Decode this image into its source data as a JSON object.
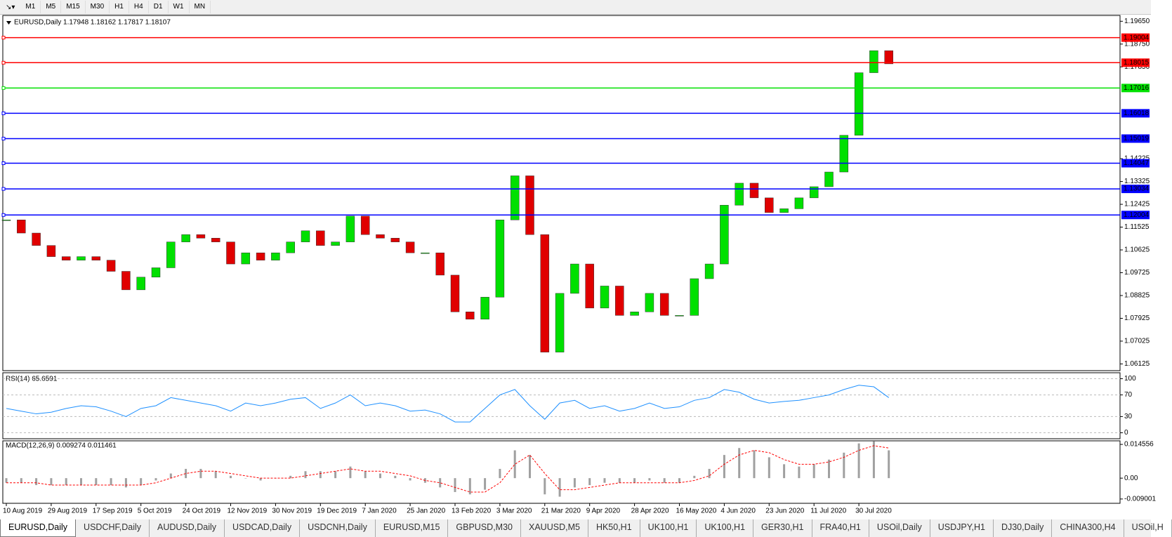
{
  "toolbar": {
    "timeframes": [
      "M1",
      "M5",
      "M15",
      "M30",
      "H1",
      "H4",
      "D1",
      "W1",
      "MN"
    ]
  },
  "tabs": [
    "EURUSD,Daily",
    "USDCHF,Daily",
    "AUDUSD,Daily",
    "USDCAD,Daily",
    "USDCNH,Daily",
    "EURUSD,M15",
    "GBPUSD,M30",
    "XAUUSD,M5",
    "HK50,H1",
    "UK100,H1",
    "UK100,H1",
    "GER30,H1",
    "FRA40,H1",
    "USOil,Daily",
    "USDJPY,H1",
    "DJ30,Daily",
    "CHINA300,H4",
    "USOil,H"
  ],
  "chart_data": [
    {
      "type": "candlestick",
      "title": "EURUSD,Daily  1.17948 1.18162 1.17817 1.18107",
      "categories": [
        "10 Aug 2019",
        null,
        null,
        "29 Aug 2019",
        null,
        null,
        "17 Sep 2019",
        null,
        null,
        "5 Oct 2019",
        null,
        null,
        "24 Oct 2019",
        null,
        null,
        "12 Nov 2019",
        null,
        null,
        "30 Nov 2019",
        null,
        null,
        "19 Dec 2019",
        null,
        null,
        "7 Jan 2020",
        null,
        null,
        "25 Jan 2020",
        null,
        null,
        "13 Feb 2020",
        null,
        null,
        "3 Mar 2020",
        null,
        null,
        "21 Mar 2020",
        null,
        null,
        "9 Apr 2020",
        null,
        null,
        "28 Apr 2020",
        null,
        null,
        "16 May 2020",
        null,
        null,
        "4 Jun 2020",
        null,
        null,
        "23 Jun 2020",
        null,
        null,
        "11 Jul 2020",
        null,
        null,
        "30 Jul 2020",
        null,
        null
      ],
      "values": [
        1.1181,
        1.1129,
        1.108,
        1.1036,
        1.1022,
        1.1036,
        1.1022,
        1.0978,
        1.0905,
        1.0955,
        1.0992,
        1.1094,
        1.1123,
        1.1109,
        1.1094,
        1.1007,
        1.1051,
        1.1022,
        1.1051,
        1.1094,
        1.1138,
        1.108,
        1.1094,
        1.1196,
        1.1123,
        1.1109,
        1.1094,
        1.1051,
        1.1051,
        1.0963,
        1.0818,
        1.0789,
        1.0876,
        1.1181,
        1.1355,
        1.1123,
        1.0659,
        1.0891,
        1.1007,
        1.0833,
        1.092,
        1.0804,
        1.0818,
        1.0891,
        1.0804,
        1.0804,
        1.0949,
        1.1007,
        1.1239,
        1.1326,
        1.1268,
        1.121,
        1.1225,
        1.1268,
        1.1312,
        1.137,
        1.1515,
        1.1762,
        1.1849,
        1.1797
      ],
      "up_color": "#00e000",
      "down_color": "#e00000",
      "ylim": [
        1.0586,
        1.1988
      ],
      "yticks": [
        {
          "value": 1.1965,
          "label": "1.19650"
        },
        {
          "value": 1.1875,
          "label": "1.18750"
        },
        {
          "value": 1.1785,
          "label": "1.17850"
        },
        {
          "value": 1.14225,
          "label": "1.14225"
        },
        {
          "value": 1.13325,
          "label": "1.13325"
        },
        {
          "value": 1.12425,
          "label": "1.12425"
        },
        {
          "value": 1.11525,
          "label": "1.11525"
        },
        {
          "value": 1.10625,
          "label": "1.10625"
        },
        {
          "value": 1.09725,
          "label": "1.09725"
        },
        {
          "value": 1.08825,
          "label": "1.08825"
        },
        {
          "value": 1.07925,
          "label": "1.07925"
        },
        {
          "value": 1.07025,
          "label": "1.07025"
        },
        {
          "value": 1.06125,
          "label": "1.06125"
        }
      ],
      "levels": [
        {
          "value": 1.19004,
          "color": "#ff0000"
        },
        {
          "value": 1.18015,
          "color": "#ff0000"
        },
        {
          "value": 1.17016,
          "color": "#00e000"
        },
        {
          "value": 1.16018,
          "color": "#0000ff"
        },
        {
          "value": 1.15019,
          "color": "#0000ff"
        },
        {
          "value": 1.14047,
          "color": "#0000ff"
        },
        {
          "value": 1.13034,
          "color": "#0000ff"
        },
        {
          "value": 1.12004,
          "color": "#0000ff"
        }
      ]
    },
    {
      "type": "line",
      "title": "RSI(14) 65.6591",
      "values": [
        45,
        40,
        35,
        38,
        45,
        50,
        48,
        40,
        30,
        45,
        50,
        65,
        60,
        55,
        50,
        40,
        55,
        50,
        55,
        62,
        65,
        45,
        55,
        70,
        50,
        55,
        50,
        40,
        42,
        35,
        20,
        20,
        45,
        70,
        80,
        50,
        25,
        55,
        60,
        45,
        50,
        40,
        45,
        55,
        45,
        48,
        60,
        65,
        80,
        75,
        62,
        55,
        58,
        60,
        65,
        70,
        80,
        88,
        85,
        65
      ],
      "color": "#1e90ff",
      "ylim": [
        -11,
        111
      ],
      "yticks": [
        100,
        70,
        30,
        0
      ]
    },
    {
      "type": "bar",
      "title": "MACD(12,26,9) 0.009274 0.011461",
      "series": [
        {
          "color": "#a0a0a0",
          "values": [
            -0.002,
            -0.002,
            -0.003,
            -0.003,
            -0.003,
            -0.003,
            -0.003,
            -0.003,
            -0.004,
            -0.003,
            -0.001,
            0.002,
            0.004,
            0.004,
            0.003,
            0.001,
            0.0,
            -0.001,
            0.0,
            0.001,
            0.003,
            0.003,
            0.003,
            0.005,
            0.003,
            0.002,
            0.001,
            -0.001,
            -0.002,
            -0.004,
            -0.006,
            -0.007,
            -0.005,
            0.004,
            0.012,
            0.01,
            -0.007,
            -0.008,
            -0.004,
            -0.003,
            -0.002,
            -0.002,
            -0.002,
            -0.001,
            -0.002,
            -0.002,
            0.001,
            0.004,
            0.01,
            0.013,
            0.012,
            0.009,
            0.006,
            0.005,
            0.006,
            0.008,
            0.011,
            0.015,
            0.016,
            0.012
          ]
        },
        {
          "color": "#ff0000",
          "values": [
            -0.002,
            -0.002,
            -0.002,
            -0.003,
            -0.003,
            -0.003,
            -0.003,
            -0.003,
            -0.003,
            -0.003,
            -0.002,
            0.0,
            0.002,
            0.003,
            0.003,
            0.002,
            0.001,
            0.0,
            0.0,
            0.0,
            0.001,
            0.002,
            0.003,
            0.004,
            0.003,
            0.003,
            0.002,
            0.001,
            -0.001,
            -0.002,
            -0.004,
            -0.006,
            -0.006,
            -0.002,
            0.006,
            0.01,
            0.002,
            -0.005,
            -0.005,
            -0.004,
            -0.003,
            -0.002,
            -0.002,
            -0.002,
            -0.002,
            -0.002,
            -0.001,
            0.001,
            0.006,
            0.01,
            0.012,
            0.011,
            0.008,
            0.006,
            0.006,
            0.007,
            0.009,
            0.012,
            0.014,
            0.013
          ]
        }
      ],
      "ylim": [
        -0.01086,
        0.0161
      ],
      "yticks": [
        0.014556,
        {
          "value": 0,
          "label": "0.00"
        },
        -0.009001
      ]
    }
  ]
}
